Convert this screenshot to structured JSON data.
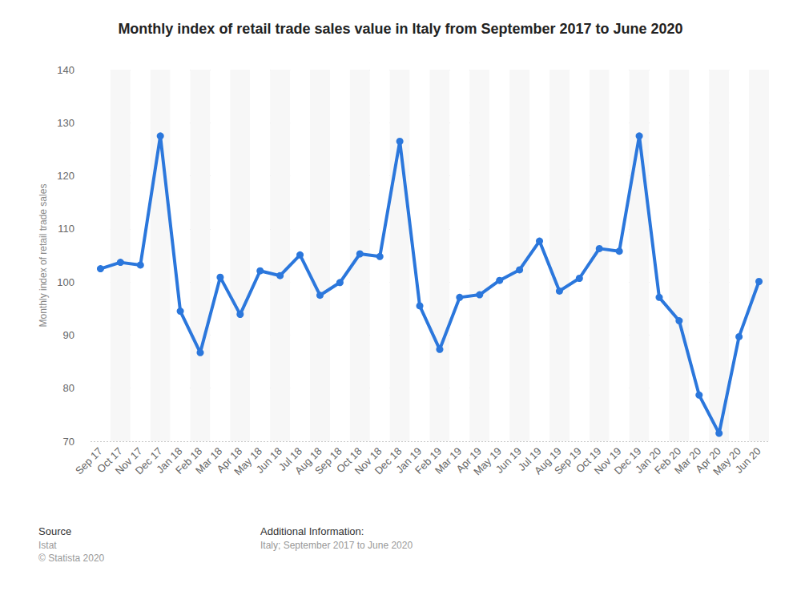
{
  "chart_data": {
    "type": "line",
    "title": "Monthly index of retail trade sales value in Italy from September 2017 to June 2020",
    "y_label": "Monthly index of retail trade sales",
    "categories": [
      "Sep 17",
      "Oct 17",
      "Nov 17",
      "Dec 17",
      "Jan 18",
      "Feb 18",
      "Mar 18",
      "Apr 18",
      "May 18",
      "Jun 18",
      "Jul 18",
      "Aug 18",
      "Sep 18",
      "Oct 18",
      "Nov 18",
      "Dec 18",
      "Jan 19",
      "Feb 19",
      "Mar 19",
      "Apr 19",
      "May 19",
      "Jun 19",
      "Jul 19",
      "Aug 19",
      "Sep 19",
      "Oct 19",
      "Nov 19",
      "Dec 19",
      "Jan 20",
      "Feb 20",
      "Mar 20",
      "Apr 20",
      "May 20",
      "Jun 20"
    ],
    "values": [
      102.5,
      103.7,
      103.2,
      127.5,
      94.5,
      86.7,
      100.9,
      93.9,
      102.1,
      101.2,
      105.1,
      97.5,
      99.9,
      105.3,
      104.8,
      126.5,
      95.5,
      87.3,
      97.1,
      97.6,
      100.3,
      102.3,
      107.7,
      98.3,
      100.7,
      106.3,
      105.8,
      127.5,
      97.1,
      92.7,
      78.7,
      71.5,
      89.7,
      100.1
    ],
    "color": "#2b77dc",
    "marker": "circle",
    "ylim": [
      70,
      140
    ],
    "yticks": [
      70,
      80,
      90,
      100,
      110,
      120,
      130,
      140
    ],
    "grid": true,
    "data_labels": false,
    "annotations": [
      {
        "heading": "Source",
        "lines": [
          "Istat",
          "© Statista 2020"
        ]
      },
      {
        "heading": "Additional Information:",
        "lines": [
          "Italy; September 2017 to June 2020"
        ]
      }
    ]
  }
}
